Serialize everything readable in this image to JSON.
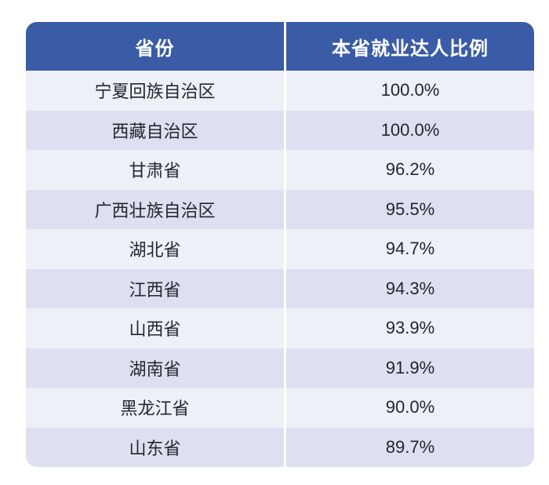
{
  "table": {
    "columns": [
      {
        "label": "省份"
      },
      {
        "label": "本省就业达人比例"
      }
    ],
    "rows": [
      {
        "province": "宁夏回族自治区",
        "ratio": "100.0%"
      },
      {
        "province": "西藏自治区",
        "ratio": "100.0%"
      },
      {
        "province": "甘肃省",
        "ratio": "96.2%"
      },
      {
        "province": "广西壮族自治区",
        "ratio": "95.5%"
      },
      {
        "province": "湖北省",
        "ratio": "94.7%"
      },
      {
        "province": "江西省",
        "ratio": "94.3%"
      },
      {
        "province": "山西省",
        "ratio": "93.9%"
      },
      {
        "province": "湖南省",
        "ratio": "91.9%"
      },
      {
        "province": "黑龙江省",
        "ratio": "90.0%"
      },
      {
        "province": "山东省",
        "ratio": "89.7%"
      }
    ]
  },
  "colors": {
    "header_bg": "#3A5CA6",
    "header_text": "#FFFFFF",
    "row_light": "#EEF0F8",
    "row_dark": "#DCE0F0",
    "divider": "#FFFFFF",
    "body_text": "#25262C"
  },
  "chart_data": {
    "type": "table",
    "columns": [
      "省份",
      "本省就业达人比例"
    ],
    "rows": [
      [
        "宁夏回族自治区",
        "100.0%"
      ],
      [
        "西藏自治区",
        "100.0%"
      ],
      [
        "甘肃省",
        "96.2%"
      ],
      [
        "广西壮族自治区",
        "95.5%"
      ],
      [
        "湖北省",
        "94.7%"
      ],
      [
        "江西省",
        "94.3%"
      ],
      [
        "山西省",
        "93.9%"
      ],
      [
        "湖南省",
        "91.9%"
      ],
      [
        "黑龙江省",
        "90.0%"
      ],
      [
        "山东省",
        "89.7%"
      ]
    ],
    "values_percent": [
      100.0,
      100.0,
      96.2,
      95.5,
      94.7,
      94.3,
      93.9,
      91.9,
      90.0,
      89.7
    ]
  }
}
